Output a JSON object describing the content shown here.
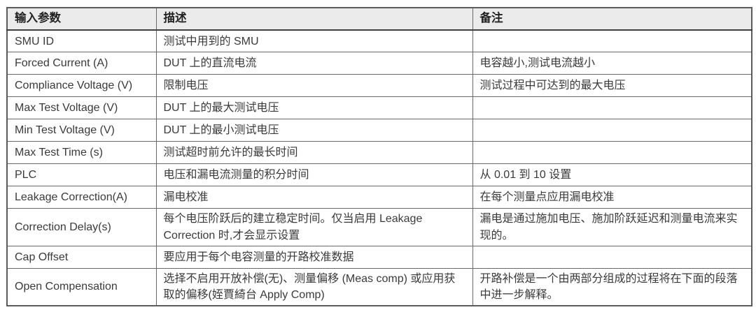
{
  "table": {
    "header_bg": "#ebebeb",
    "border_color": "#686868",
    "text_color": "#3a3a3a",
    "columns": [
      {
        "key": "param",
        "label": "输入参数"
      },
      {
        "key": "desc",
        "label": "描述"
      },
      {
        "key": "note",
        "label": "备注"
      }
    ],
    "rows": [
      {
        "param": "SMU ID",
        "desc": "测试中用到的 SMU",
        "note": ""
      },
      {
        "param": "Forced Current (A)",
        "desc": "DUT 上的直流电流",
        "note": "电容越小,测试电流越小"
      },
      {
        "param": "Compliance Voltage (V)",
        "desc": "限制电压",
        "note": "测试过程中可达到的最大电压"
      },
      {
        "param": "Max Test Voltage (V)",
        "desc": "DUT 上的最大测试电压",
        "note": ""
      },
      {
        "param": "Min Test Voltage (V)",
        "desc": "DUT 上的最小测试电压",
        "note": ""
      },
      {
        "param": "Max Test Time (s)",
        "desc": "测试超时前允许的最长时间",
        "note": ""
      },
      {
        "param": "PLC",
        "desc": "电压和漏电流测量的积分时间",
        "note": "从 0.01 到 10 设置"
      },
      {
        "param": "Leakage Correction(A)",
        "desc": "漏电校准",
        "note": "在每个测量点应用漏电校准"
      },
      {
        "param": "Correction Delay(s)",
        "desc": "每个电压阶跃后的建立稳定时间。仅当启用 Leakage Correction 时,才会显示设置",
        "note": "漏电是通过施加电压、施加阶跃延迟和测量电流来实现的。"
      },
      {
        "param": "Cap Offset",
        "desc": "要应用于每个电容测量的开路校准数据",
        "note": ""
      },
      {
        "param": "Open Compensation",
        "desc": "选择不启用开放补偿(无)、测量偏移 (Meas comp) 或应用获取的偏移(姪賈綺台 Apply Comp)",
        "note": "开路补偿是一个由两部分组成的过程将在下面的段落中进一步解释。"
      }
    ]
  }
}
